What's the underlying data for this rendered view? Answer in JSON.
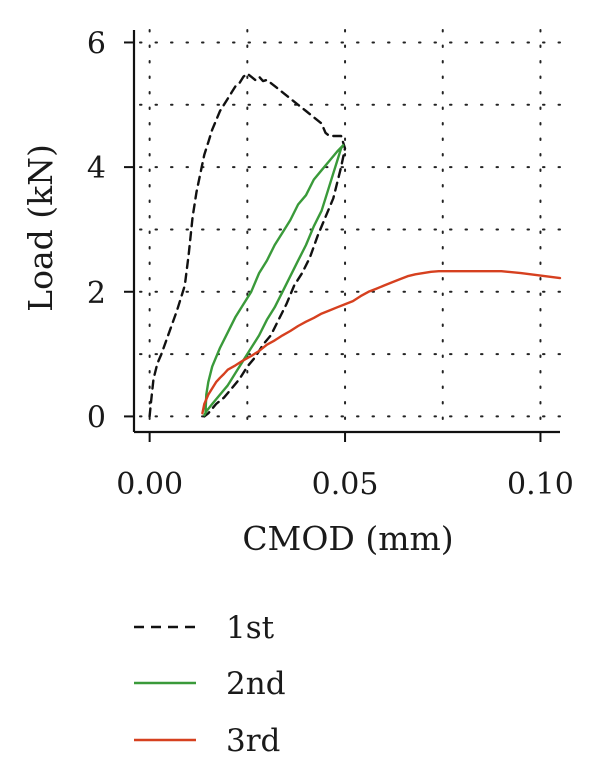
{
  "chart_data": {
    "type": "line",
    "title": "",
    "xlabel": "CMOD (mm)",
    "ylabel": "Load (kN)",
    "xlim": [
      -0.004,
      0.105
    ],
    "ylim": [
      -0.25,
      6.2
    ],
    "xticks": [
      0.0,
      0.05,
      0.1
    ],
    "xtick_labels": [
      "0.00",
      "0.05",
      "0.10"
    ],
    "yticks": [
      0,
      2,
      4,
      6
    ],
    "ytick_labels": [
      "0",
      "2",
      "4",
      "6"
    ],
    "grid": true,
    "legend_position": "bottom-left, below plot",
    "series": [
      {
        "name": "1st",
        "color": "#111111",
        "dash": "dashed",
        "x": [
          0.0,
          0.0003,
          0.001,
          0.002,
          0.003,
          0.005,
          0.007,
          0.009,
          0.01,
          0.011,
          0.012,
          0.013,
          0.014,
          0.015,
          0.016,
          0.017,
          0.018,
          0.019,
          0.02,
          0.021,
          0.022,
          0.023,
          0.024,
          0.025,
          0.026,
          0.027,
          0.028,
          0.029,
          0.03,
          0.031,
          0.032,
          0.034,
          0.036,
          0.038,
          0.04,
          0.042,
          0.044,
          0.045,
          0.046,
          0.047,
          0.048,
          0.049,
          0.05,
          0.049,
          0.047,
          0.045,
          0.043,
          0.041,
          0.039,
          0.037,
          0.035,
          0.033,
          0.031,
          0.029,
          0.027,
          0.025,
          0.023,
          0.021,
          0.019,
          0.017,
          0.015,
          0.014
        ],
        "y": [
          0.0,
          0.2,
          0.6,
          0.85,
          1.0,
          1.35,
          1.7,
          2.1,
          2.6,
          3.2,
          3.6,
          3.9,
          4.2,
          4.4,
          4.6,
          4.75,
          4.9,
          5.0,
          5.1,
          5.2,
          5.3,
          5.35,
          5.45,
          5.5,
          5.45,
          5.4,
          5.45,
          5.38,
          5.4,
          5.35,
          5.3,
          5.2,
          5.1,
          5.0,
          4.9,
          4.8,
          4.7,
          4.55,
          4.5,
          4.5,
          4.5,
          4.5,
          4.3,
          4.0,
          3.5,
          3.2,
          2.9,
          2.55,
          2.3,
          2.1,
          1.8,
          1.55,
          1.3,
          1.15,
          0.95,
          0.8,
          0.6,
          0.45,
          0.3,
          0.2,
          0.05,
          0.0
        ]
      },
      {
        "name": "2nd",
        "color": "#3a9a3a",
        "dash": "solid",
        "x": [
          0.0143,
          0.0145,
          0.015,
          0.016,
          0.017,
          0.018,
          0.02,
          0.022,
          0.024,
          0.026,
          0.028,
          0.03,
          0.032,
          0.034,
          0.036,
          0.038,
          0.04,
          0.042,
          0.044,
          0.046,
          0.048,
          0.0495,
          0.049,
          0.048,
          0.047,
          0.046,
          0.045,
          0.044,
          0.042,
          0.04,
          0.038,
          0.036,
          0.034,
          0.032,
          0.03,
          0.028,
          0.026,
          0.024,
          0.022,
          0.02,
          0.018,
          0.016,
          0.0145,
          0.014
        ],
        "y": [
          0.05,
          0.35,
          0.55,
          0.8,
          0.95,
          1.1,
          1.35,
          1.6,
          1.8,
          2.0,
          2.3,
          2.5,
          2.75,
          2.95,
          3.15,
          3.4,
          3.55,
          3.8,
          3.95,
          4.1,
          4.25,
          4.35,
          4.3,
          4.1,
          3.9,
          3.7,
          3.5,
          3.3,
          3.05,
          2.75,
          2.5,
          2.25,
          2.0,
          1.75,
          1.55,
          1.3,
          1.1,
          0.9,
          0.7,
          0.5,
          0.35,
          0.2,
          0.08,
          0.02
        ]
      },
      {
        "name": "3rd",
        "color": "#d6401f",
        "dash": "solid",
        "x": [
          0.0135,
          0.014,
          0.015,
          0.016,
          0.017,
          0.018,
          0.019,
          0.02,
          0.022,
          0.024,
          0.026,
          0.028,
          0.03,
          0.032,
          0.034,
          0.036,
          0.038,
          0.04,
          0.042,
          0.044,
          0.046,
          0.048,
          0.05,
          0.052,
          0.054,
          0.056,
          0.058,
          0.06,
          0.062,
          0.064,
          0.066,
          0.068,
          0.07,
          0.072,
          0.074,
          0.076,
          0.078,
          0.08,
          0.085,
          0.09,
          0.095,
          0.1,
          0.105
        ],
        "y": [
          0.05,
          0.2,
          0.35,
          0.45,
          0.55,
          0.62,
          0.68,
          0.75,
          0.82,
          0.9,
          0.97,
          1.05,
          1.15,
          1.22,
          1.3,
          1.37,
          1.45,
          1.52,
          1.58,
          1.65,
          1.7,
          1.75,
          1.8,
          1.85,
          1.93,
          2.0,
          2.05,
          2.1,
          2.15,
          2.2,
          2.25,
          2.28,
          2.3,
          2.32,
          2.33,
          2.33,
          2.33,
          2.33,
          2.33,
          2.33,
          2.3,
          2.26,
          2.22
        ]
      }
    ]
  }
}
